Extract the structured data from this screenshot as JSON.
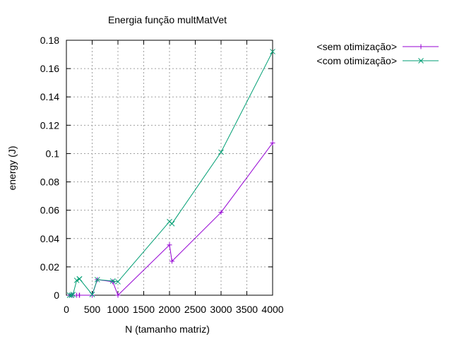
{
  "chart_data": {
    "type": "line",
    "title": "Energia função multMatVet",
    "xlabel": "N (tamanho matriz)",
    "ylabel": "energy (J)",
    "xlim": [
      0,
      4000
    ],
    "ylim": [
      0,
      0.18
    ],
    "xticks": [
      "0",
      "500",
      "1000",
      "1500",
      "2000",
      "2500",
      "3000",
      "3500",
      "4000"
    ],
    "yticks": [
      "0",
      "0.02",
      "0.04",
      "0.06",
      "0.08",
      "0.1",
      "0.12",
      "0.14",
      "0.16",
      "0.18"
    ],
    "grid": true,
    "legend_position": "outside-right",
    "series": [
      {
        "name": "<sem otimização>",
        "color": "#9400d3",
        "marker": "plus",
        "x": [
          64,
          100,
          128,
          200,
          250,
          256,
          500,
          600,
          900,
          1000,
          2000,
          2048,
          3000,
          4000
        ],
        "y": [
          0,
          0,
          0,
          0,
          0,
          0,
          0,
          0.011,
          0.0095,
          0,
          0.0355,
          0.024,
          0.0585,
          0.1075
        ]
      },
      {
        "name": "<com otimização>",
        "color": "#009e73",
        "marker": "cross",
        "x": [
          64,
          100,
          128,
          200,
          250,
          256,
          500,
          600,
          900,
          1000,
          2000,
          2048,
          3000,
          4000
        ],
        "y": [
          0,
          0,
          0.0005,
          0.0105,
          0.0115,
          0.0115,
          0.0005,
          0.011,
          0.01,
          0.0095,
          0.052,
          0.0505,
          0.101,
          0.172
        ]
      }
    ]
  }
}
